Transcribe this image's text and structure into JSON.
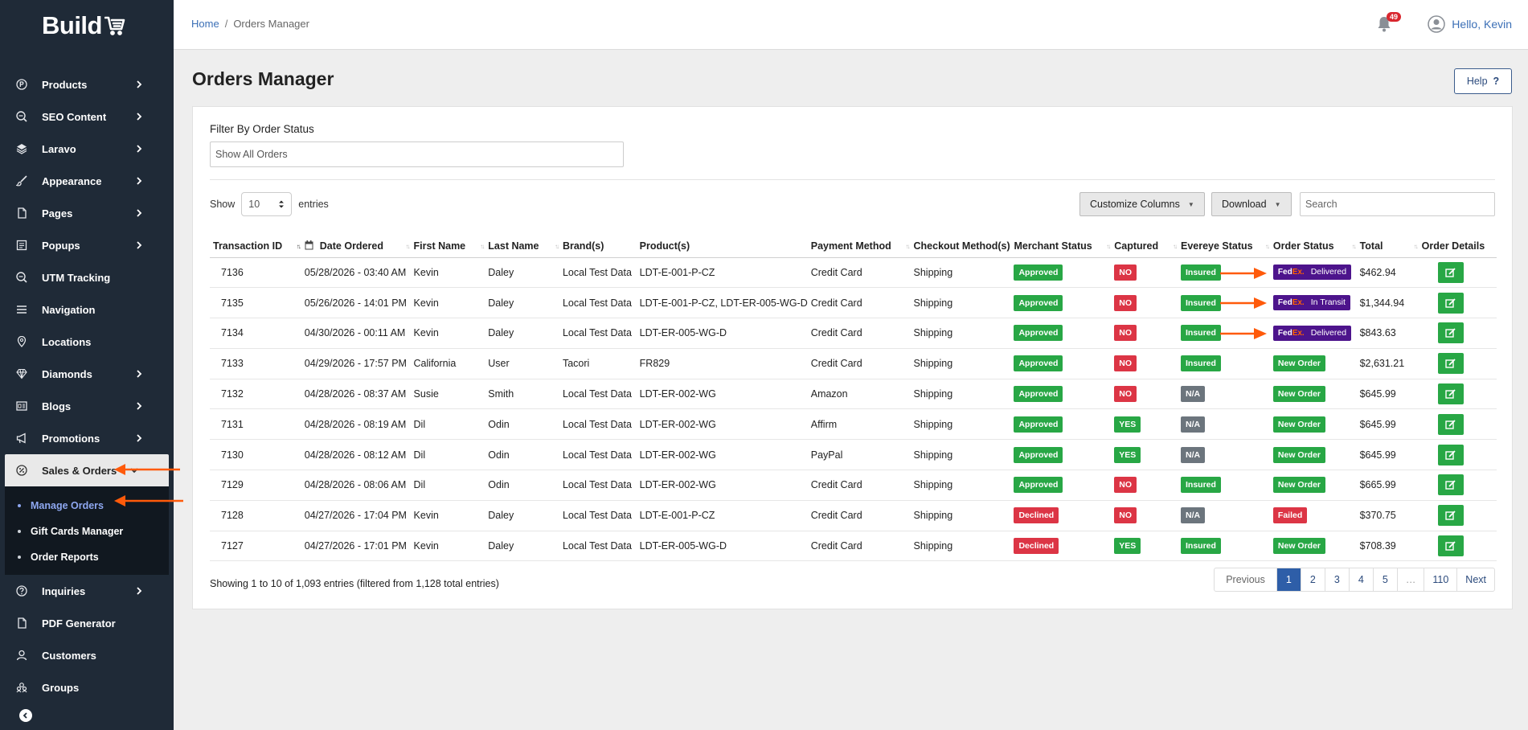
{
  "app": {
    "logo_text": "Build"
  },
  "sidebar": {
    "items": [
      {
        "label": "Products",
        "icon": "p-circle-icon",
        "chevron": true
      },
      {
        "label": "SEO Content",
        "icon": "seo-icon",
        "chevron": true
      },
      {
        "label": "Laravo",
        "icon": "layers-icon",
        "chevron": true
      },
      {
        "label": "Appearance",
        "icon": "brush-icon",
        "chevron": true
      },
      {
        "label": "Pages",
        "icon": "page-icon",
        "chevron": true
      },
      {
        "label": "Popups",
        "icon": "popup-icon",
        "chevron": true
      },
      {
        "label": "UTM Tracking",
        "icon": "seo-icon",
        "chevron": false
      },
      {
        "label": "Navigation",
        "icon": "menu-icon",
        "chevron": false
      },
      {
        "label": "Locations",
        "icon": "pin-icon",
        "chevron": false
      },
      {
        "label": "Diamonds",
        "icon": "diamond-icon",
        "chevron": true
      },
      {
        "label": "Blogs",
        "icon": "blog-icon",
        "chevron": true
      },
      {
        "label": "Promotions",
        "icon": "megaphone-icon",
        "chevron": true
      },
      {
        "label": "Sales & Orders",
        "icon": "percent-icon",
        "chevron": true
      }
    ],
    "submenu": [
      {
        "label": "Manage Orders"
      },
      {
        "label": "Gift Cards Manager"
      },
      {
        "label": "Order Reports"
      }
    ],
    "items_after": [
      {
        "label": "Inquiries",
        "icon": "question-icon",
        "chevron": true
      },
      {
        "label": "PDF Generator",
        "icon": "page-icon",
        "chevron": false
      },
      {
        "label": "Customers",
        "icon": "user-icon",
        "chevron": false
      },
      {
        "label": "Groups",
        "icon": "group-icon",
        "chevron": false
      }
    ]
  },
  "topbar": {
    "breadcrumb_home": "Home",
    "breadcrumb_sep": "/",
    "breadcrumb_current": "Orders Manager",
    "notification_count": "49",
    "greeting": "Hello, Kevin"
  },
  "page": {
    "title": "Orders Manager",
    "help_label": "Help",
    "filter_label": "Filter By Order Status",
    "filter_value": "Show All Orders",
    "show_label": "Show",
    "entries_value": "10",
    "entries_label": "entries",
    "customize_columns": "Customize Columns",
    "download": "Download",
    "search_placeholder": "Search"
  },
  "table": {
    "columns": [
      "Transaction ID",
      "Date Ordered",
      "First Name",
      "Last Name",
      "Brand(s)",
      "Product(s)",
      "Payment Method",
      "Checkout Method(s)",
      "Merchant Status",
      "Captured",
      "Evereye Status",
      "Order Status",
      "Total",
      "Order Details"
    ],
    "rows": [
      {
        "id": "7136",
        "date": "05/28/2026 - 03:40 AM",
        "first": "Kevin",
        "last": "Daley",
        "brand": "Local Test Data",
        "product": "LDT-E-001-P-CZ",
        "payment": "Credit Card",
        "checkout": "Shipping",
        "merchant": "Approved",
        "captured": "NO",
        "evereye": "Insured",
        "order_status": "Delivered",
        "fedex": true,
        "total": "$462.94"
      },
      {
        "id": "7135",
        "date": "05/26/2026 - 14:01 PM",
        "first": "Kevin",
        "last": "Daley",
        "brand": "Local Test Data",
        "product": "LDT-E-001-P-CZ, LDT-ER-005-WG-D",
        "payment": "Credit Card",
        "checkout": "Shipping",
        "merchant": "Approved",
        "captured": "NO",
        "evereye": "Insured",
        "order_status": "In Transit",
        "fedex": true,
        "total": "$1,344.94"
      },
      {
        "id": "7134",
        "date": "04/30/2026 - 00:11 AM",
        "first": "Kevin",
        "last": "Daley",
        "brand": "Local Test Data",
        "product": "LDT-ER-005-WG-D",
        "payment": "Credit Card",
        "checkout": "Shipping",
        "merchant": "Approved",
        "captured": "NO",
        "evereye": "Insured",
        "order_status": "Delivered",
        "fedex": true,
        "total": "$843.63"
      },
      {
        "id": "7133",
        "date": "04/29/2026 - 17:57 PM",
        "first": "California",
        "last": "User",
        "brand": "Tacori",
        "product": "FR829",
        "payment": "Credit Card",
        "checkout": "Shipping",
        "merchant": "Approved",
        "captured": "NO",
        "evereye": "Insured",
        "order_status": "New Order",
        "fedex": false,
        "total": "$2,631.21"
      },
      {
        "id": "7132",
        "date": "04/28/2026 - 08:37 AM",
        "first": "Susie",
        "last": "Smith",
        "brand": "Local Test Data",
        "product": "LDT-ER-002-WG",
        "payment": "Amazon",
        "checkout": "Shipping",
        "merchant": "Approved",
        "captured": "NO",
        "evereye": "N/A",
        "order_status": "New Order",
        "fedex": false,
        "total": "$645.99"
      },
      {
        "id": "7131",
        "date": "04/28/2026 - 08:19 AM",
        "first": "Dil",
        "last": "Odin",
        "brand": "Local Test Data",
        "product": "LDT-ER-002-WG",
        "payment": "Affirm",
        "checkout": "Shipping",
        "merchant": "Approved",
        "captured": "YES",
        "evereye": "N/A",
        "order_status": "New Order",
        "fedex": false,
        "total": "$645.99"
      },
      {
        "id": "7130",
        "date": "04/28/2026 - 08:12 AM",
        "first": "Dil",
        "last": "Odin",
        "brand": "Local Test Data",
        "product": "LDT-ER-002-WG",
        "payment": "PayPal",
        "checkout": "Shipping",
        "merchant": "Approved",
        "captured": "YES",
        "evereye": "N/A",
        "order_status": "New Order",
        "fedex": false,
        "total": "$645.99"
      },
      {
        "id": "7129",
        "date": "04/28/2026 - 08:06 AM",
        "first": "Dil",
        "last": "Odin",
        "brand": "Local Test Data",
        "product": "LDT-ER-002-WG",
        "payment": "Credit Card",
        "checkout": "Shipping",
        "merchant": "Approved",
        "captured": "NO",
        "evereye": "Insured",
        "order_status": "New Order",
        "fedex": false,
        "total": "$665.99"
      },
      {
        "id": "7128",
        "date": "04/27/2026 - 17:04 PM",
        "first": "Kevin",
        "last": "Daley",
        "brand": "Local Test Data",
        "product": "LDT-E-001-P-CZ",
        "payment": "Credit Card",
        "checkout": "Shipping",
        "merchant": "Declined",
        "captured": "NO",
        "evereye": "N/A",
        "order_status": "Failed",
        "fedex": false,
        "total": "$370.75"
      },
      {
        "id": "7127",
        "date": "04/27/2026 - 17:01 PM",
        "first": "Kevin",
        "last": "Daley",
        "brand": "Local Test Data",
        "product": "LDT-ER-005-WG-D",
        "payment": "Credit Card",
        "checkout": "Shipping",
        "merchant": "Declined",
        "captured": "YES",
        "evereye": "Insured",
        "order_status": "New Order",
        "fedex": false,
        "total": "$708.39"
      }
    ]
  },
  "footer": {
    "info": "Showing 1 to 10 of 1,093 entries (filtered from 1,128 total entries)",
    "pages": [
      "Previous",
      "1",
      "2",
      "3",
      "4",
      "5",
      "…",
      "110",
      "Next"
    ],
    "active_page": "1"
  },
  "colors": {
    "sidebar_bg": "#1f2a37",
    "approved": "#28a745",
    "declined": "#dc3545",
    "na": "#6c757d",
    "fedex_purple": "#4d148c",
    "fedex_orange": "#ff6200",
    "annotation_arrow": "#ff5a0a",
    "active_page": "#2e5ea8"
  }
}
